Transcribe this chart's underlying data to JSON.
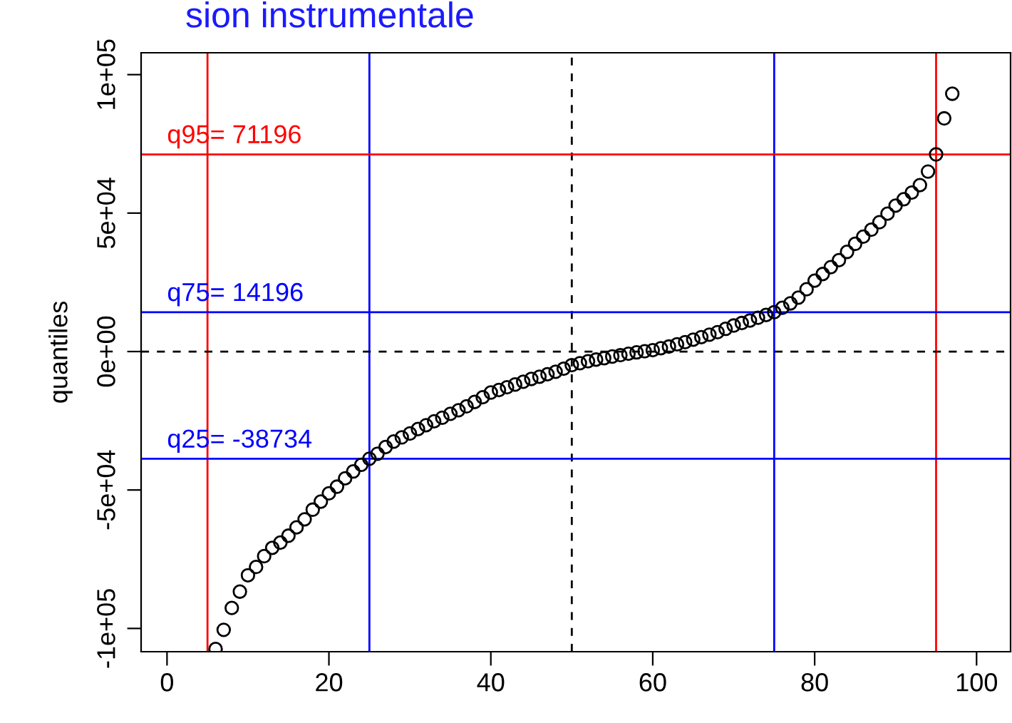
{
  "chart_data": {
    "type": "scatter",
    "title": "sion instrumentale",
    "ylabel": "quantiles",
    "x": [
      6,
      7,
      8,
      9,
      10,
      11,
      12,
      13,
      14,
      15,
      16,
      17,
      18,
      19,
      20,
      21,
      22,
      23,
      24,
      25,
      26,
      27,
      28,
      29,
      30,
      31,
      32,
      33,
      34,
      35,
      36,
      37,
      38,
      39,
      40,
      41,
      42,
      43,
      44,
      45,
      46,
      47,
      48,
      49,
      50,
      51,
      52,
      53,
      54,
      55,
      56,
      57,
      58,
      59,
      60,
      61,
      62,
      63,
      64,
      65,
      66,
      67,
      68,
      69,
      70,
      71,
      72,
      73,
      74,
      75,
      76,
      77,
      78,
      79,
      80,
      81,
      82,
      83,
      84,
      85,
      86,
      87,
      88,
      89,
      90,
      91,
      92,
      93,
      94,
      95,
      96,
      97
    ],
    "series": [
      {
        "color": "#000000",
        "values": [
          -107400,
          -100500,
          -92600,
          -86700,
          -80800,
          -77800,
          -73900,
          -70900,
          -69000,
          -66500,
          -63500,
          -60600,
          -57100,
          -54200,
          -51200,
          -48800,
          -45800,
          -43300,
          -40900,
          -38700,
          -36900,
          -34500,
          -32500,
          -31000,
          -29600,
          -28000,
          -26600,
          -25200,
          -23900,
          -22500,
          -21200,
          -19800,
          -18200,
          -16500,
          -14800,
          -13900,
          -12900,
          -11900,
          -10900,
          -9900,
          -9100,
          -8200,
          -7300,
          -6200,
          -4900,
          -4200,
          -3500,
          -2900,
          -2400,
          -1800,
          -1300,
          -800,
          -300,
          100,
          500,
          1200,
          1800,
          2600,
          3400,
          4300,
          5200,
          6100,
          7000,
          8200,
          9400,
          10300,
          11200,
          12200,
          13200,
          14200,
          15800,
          17400,
          19500,
          22500,
          25600,
          28000,
          30500,
          33000,
          36000,
          38900,
          41500,
          44000,
          46700,
          49800,
          52700,
          55000,
          57400,
          60100,
          65000,
          71200,
          84200,
          93100
        ]
      }
    ],
    "marker": "circle",
    "xlim": [
      -3.2,
      104.2
    ],
    "xticks": [
      0,
      20,
      40,
      60,
      80,
      100
    ],
    "ylim": [
      -108400,
      107900
    ],
    "yticks": [
      {
        "value": -100000,
        "label": "-1e+05"
      },
      {
        "value": -50000,
        "label": "-5e+04"
      },
      {
        "value": 0,
        "label": "0e+00"
      },
      {
        "value": 50000,
        "label": "5e+04"
      },
      {
        "value": 100000,
        "label": "1e+05"
      }
    ],
    "ref_lines": [
      {
        "axis": "x",
        "value": 5,
        "color": "#ff0000",
        "line_style": "solid"
      },
      {
        "axis": "x",
        "value": 25,
        "color": "#0000ff",
        "line_style": "solid"
      },
      {
        "axis": "x",
        "value": 50,
        "color": "#000000",
        "line_style": "dashed"
      },
      {
        "axis": "x",
        "value": 75,
        "color": "#0000ff",
        "line_style": "solid"
      },
      {
        "axis": "x",
        "value": 95,
        "color": "#ff0000",
        "line_style": "solid"
      },
      {
        "axis": "y",
        "value": 71196,
        "label": "q95= 71196",
        "color": "#ff0000",
        "line_style": "solid"
      },
      {
        "axis": "y",
        "value": 14196,
        "label": "q75= 14196",
        "color": "#0000ff",
        "line_style": "solid"
      },
      {
        "axis": "y",
        "value": 0,
        "color": "#000000",
        "line_style": "dashed"
      },
      {
        "axis": "y",
        "value": -38734,
        "label": "q25= -38734",
        "color": "#0000ff",
        "line_style": "solid"
      }
    ],
    "grid": false,
    "legend": false
  }
}
